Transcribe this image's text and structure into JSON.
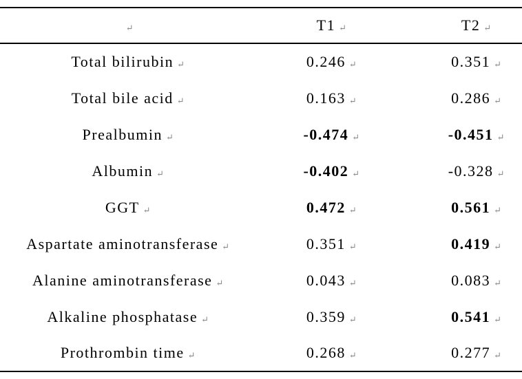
{
  "table": {
    "paragraph_mark": "↵",
    "columns": [
      "",
      "T1",
      "T2"
    ],
    "rows": [
      {
        "label": "Total bilirubin",
        "t1": "0.246",
        "t1_bold": false,
        "t2": "0.351",
        "t2_bold": false
      },
      {
        "label": "Total bile acid",
        "t1": "0.163",
        "t1_bold": false,
        "t2": "0.286",
        "t2_bold": false
      },
      {
        "label": "Prealbumin",
        "t1": "-0.474",
        "t1_bold": true,
        "t2": "-0.451",
        "t2_bold": true
      },
      {
        "label": "Albumin",
        "t1": "-0.402",
        "t1_bold": true,
        "t2": "-0.328",
        "t2_bold": false
      },
      {
        "label": "GGT",
        "t1": "0.472",
        "t1_bold": true,
        "t2": "0.561",
        "t2_bold": true
      },
      {
        "label": "Aspartate aminotransferase",
        "t1": "0.351",
        "t1_bold": false,
        "t2": "0.419",
        "t2_bold": true
      },
      {
        "label": "Alanine aminotransferase",
        "t1": "0.043",
        "t1_bold": false,
        "t2": "0.083",
        "t2_bold": false
      },
      {
        "label": "Alkaline phosphatase",
        "t1": "0.359",
        "t1_bold": false,
        "t2": "0.541",
        "t2_bold": true
      },
      {
        "label": "Prothrombin time",
        "t1": "0.268",
        "t1_bold": false,
        "t2": "0.277",
        "t2_bold": false
      }
    ],
    "colors": {
      "text": "#000000",
      "rule": "#000000",
      "paragraph_mark": "#8a8a8a",
      "background": "#ffffff"
    }
  }
}
